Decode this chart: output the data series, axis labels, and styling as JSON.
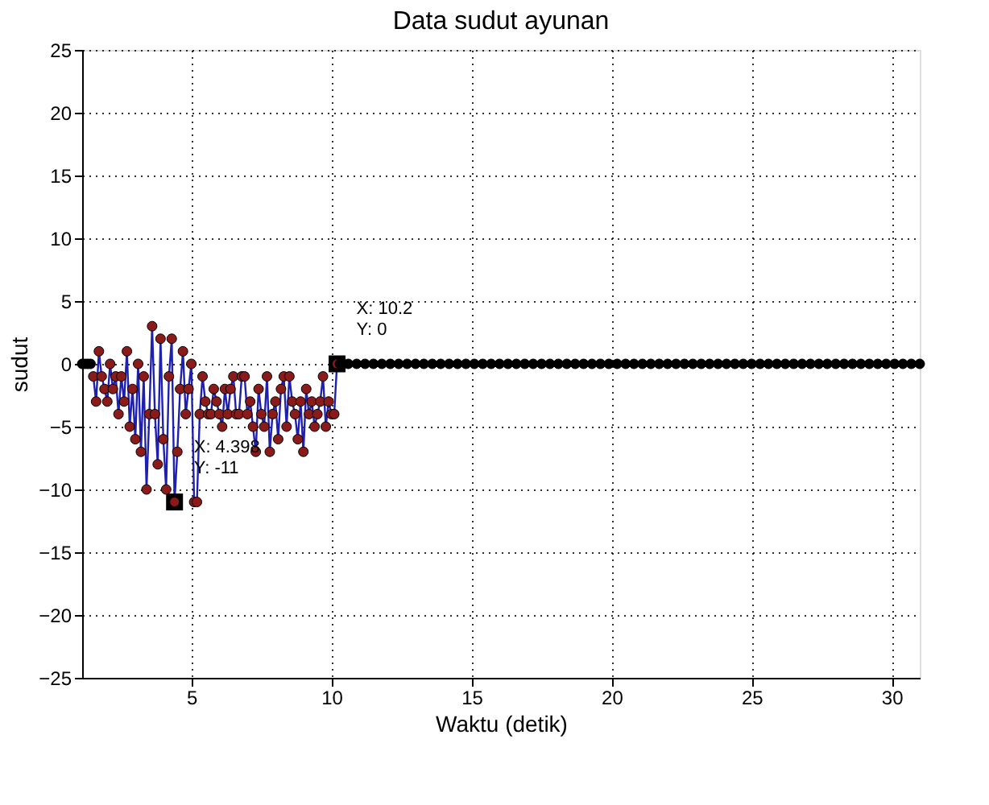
{
  "chart_data": {
    "type": "line",
    "title": "Data sudut ayunan",
    "xlabel": "Waktu (detik)",
    "ylabel": "sudut",
    "xlim": [
      1.1,
      31
    ],
    "xticks": [
      5,
      10,
      15,
      20,
      25,
      30
    ],
    "ylim": [
      -25,
      25
    ],
    "yticks": [
      -25,
      -20,
      -15,
      -10,
      -5,
      0,
      5,
      10,
      15,
      20,
      25
    ],
    "grid": true,
    "marker": "circle",
    "line_style": "solid",
    "annotations": [
      {
        "text": "X: 4.398\nY: -11",
        "x": 4.398,
        "y": -11
      },
      {
        "text": "X: 10.2\nY: 0",
        "x": 10.2,
        "y": 0
      }
    ],
    "series": [
      {
        "type": "scatter",
        "color": "#000000",
        "x": [
          1.1,
          1.2,
          1.3,
          1.4
        ],
        "values": [
          0,
          0,
          0,
          0
        ]
      },
      {
        "marker": "none",
        "color": "#2020b0",
        "x": [
          1.498,
          1.598,
          1.698,
          1.798,
          1.898,
          1.998,
          2.098,
          2.198,
          2.298,
          2.398,
          2.498,
          2.598,
          2.698,
          2.798,
          2.898,
          2.998,
          3.098,
          3.198,
          3.298,
          3.398,
          3.498,
          3.598,
          3.698,
          3.798,
          3.898,
          3.998,
          4.098,
          4.198,
          4.298,
          4.398,
          4.498,
          4.598,
          4.698,
          4.798,
          4.898,
          4.998,
          5.098,
          5.198,
          5.298,
          5.398,
          5.498,
          5.598,
          5.698,
          5.798,
          5.898,
          5.998,
          6.098,
          6.198,
          6.298,
          6.398,
          6.498,
          6.598,
          6.698,
          6.798,
          6.898,
          6.998,
          7.098,
          7.198,
          7.298,
          7.398,
          7.498,
          7.598,
          7.698,
          7.798,
          7.898,
          7.998,
          8.098,
          8.198,
          8.298,
          8.398,
          8.498,
          8.598,
          8.698,
          8.798,
          8.898,
          8.998,
          9.098,
          9.198,
          9.298,
          9.398,
          9.498,
          9.598,
          9.698,
          9.798,
          9.898,
          9.998,
          10.098,
          10.198
        ],
        "values": [
          -1,
          -3,
          1,
          -1,
          -2,
          -3,
          0,
          -2,
          -1,
          -4,
          -1,
          -3,
          1,
          -5,
          -2,
          -6,
          0,
          -7,
          -1,
          -10,
          -4,
          3,
          -4,
          -8,
          2,
          -6,
          -10,
          -1,
          2,
          -11,
          -7,
          -2,
          1,
          -4,
          -2,
          0,
          -11,
          -11,
          -4,
          -1,
          -3,
          -4,
          -4,
          -2,
          -3,
          -4,
          -5,
          -2,
          -4,
          -2,
          -1,
          -4,
          -4,
          -1,
          -1,
          -4,
          -3,
          -5,
          -7,
          -2,
          -4,
          -5,
          -1,
          -7,
          -4,
          -3,
          -6,
          -2,
          -1,
          -5,
          -1,
          -3,
          -4,
          -6,
          -3,
          -7,
          -2,
          -4,
          -3,
          -5,
          -4,
          -3,
          -1,
          -5,
          -3,
          -4,
          -4,
          0
        ]
      },
      {
        "type": "scatter",
        "color": "#8b1a1a",
        "x": [
          1.498,
          1.598,
          1.698,
          1.798,
          1.898,
          1.998,
          2.098,
          2.198,
          2.298,
          2.398,
          2.498,
          2.598,
          2.698,
          2.798,
          2.898,
          2.998,
          3.098,
          3.198,
          3.298,
          3.398,
          3.498,
          3.598,
          3.698,
          3.798,
          3.898,
          3.998,
          4.098,
          4.198,
          4.298,
          4.398,
          4.498,
          4.598,
          4.698,
          4.798,
          4.898,
          4.998,
          5.098,
          5.198,
          5.298,
          5.398,
          5.498,
          5.598,
          5.698,
          5.798,
          5.898,
          5.998,
          6.098,
          6.198,
          6.298,
          6.398,
          6.498,
          6.598,
          6.698,
          6.798,
          6.898,
          6.998,
          7.098,
          7.198,
          7.298,
          7.398,
          7.498,
          7.598,
          7.698,
          7.798,
          7.898,
          7.998,
          8.098,
          8.198,
          8.298,
          8.398,
          8.498,
          8.598,
          8.698,
          8.798,
          8.898,
          8.998,
          9.098,
          9.198,
          9.298,
          9.398,
          9.498,
          9.598,
          9.698,
          9.798,
          9.898,
          9.998,
          10.098,
          10.198
        ],
        "values": [
          -1,
          -3,
          1,
          -1,
          -2,
          -3,
          0,
          -2,
          -1,
          -4,
          -1,
          -3,
          1,
          -5,
          -2,
          -6,
          0,
          -7,
          -1,
          -10,
          -4,
          3,
          -4,
          -8,
          2,
          -6,
          -10,
          -1,
          2,
          -11,
          -7,
          -2,
          1,
          -4,
          -2,
          0,
          -11,
          -11,
          -4,
          -1,
          -3,
          -4,
          -4,
          -2,
          -3,
          -4,
          -5,
          -2,
          -4,
          -2,
          -1,
          -4,
          -4,
          -1,
          -1,
          -4,
          -3,
          -5,
          -7,
          -2,
          -4,
          -5,
          -1,
          -7,
          -4,
          -3,
          -6,
          -2,
          -1,
          -5,
          -1,
          -3,
          -4,
          -6,
          -3,
          -7,
          -2,
          -4,
          -3,
          -5,
          -4,
          -3,
          -1,
          -5,
          -3,
          -4,
          -4,
          0
        ]
      },
      {
        "type": "scatter",
        "color": "#000000",
        "x": [
          10.3,
          10.6,
          10.9,
          11.2,
          11.5,
          11.8,
          12.1,
          12.4,
          12.7,
          13.0,
          13.3,
          13.6,
          13.9,
          14.2,
          14.5,
          14.8,
          15.1,
          15.4,
          15.7,
          16.0,
          16.3,
          16.6,
          16.9,
          17.2,
          17.5,
          17.8,
          18.1,
          18.4,
          18.7,
          19.0,
          19.3,
          19.6,
          19.9,
          20.2,
          20.5,
          20.8,
          21.1,
          21.4,
          21.7,
          22.0,
          22.3,
          22.6,
          22.9,
          23.2,
          23.5,
          23.8,
          24.1,
          24.4,
          24.7,
          25.0,
          25.3,
          25.6,
          25.9,
          26.2,
          26.5,
          26.8,
          27.1,
          27.4,
          27.7,
          28.0,
          28.3,
          28.6,
          28.9,
          29.2,
          29.5,
          29.8,
          30.1,
          30.4,
          30.7,
          31.0
        ],
        "values": [
          0,
          0,
          0,
          0,
          0,
          0,
          0,
          0,
          0,
          0,
          0,
          0,
          0,
          0,
          0,
          0,
          0,
          0,
          0,
          0,
          0,
          0,
          0,
          0,
          0,
          0,
          0,
          0,
          0,
          0,
          0,
          0,
          0,
          0,
          0,
          0,
          0,
          0,
          0,
          0,
          0,
          0,
          0,
          0,
          0,
          0,
          0,
          0,
          0,
          0,
          0,
          0,
          0,
          0,
          0,
          0,
          0,
          0,
          0,
          0,
          0,
          0,
          0,
          0,
          0,
          0,
          0,
          0,
          0,
          0
        ]
      }
    ]
  }
}
